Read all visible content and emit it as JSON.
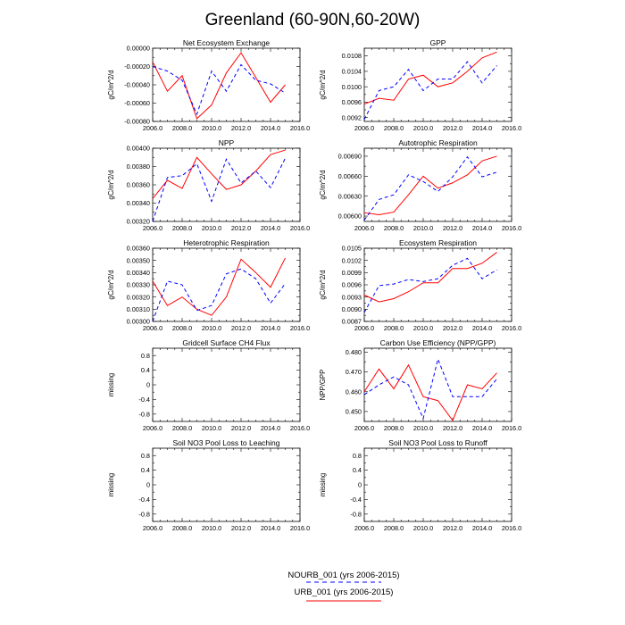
{
  "title": "Greenland (60-90N,60-20W)",
  "colors": {
    "URB_001": "#ff0000",
    "NOURB_001": "#0000ff",
    "axis": "#000000"
  },
  "legend": [
    {
      "label": "NOURB_001 (yrs 2006-2015)",
      "color": "#0000ff",
      "style": "dashed"
    },
    {
      "label": "URB_001 (yrs 2006-2015)",
      "color": "#ff0000",
      "style": "solid"
    }
  ],
  "chart_data": [
    {
      "type": "line",
      "title": "Net Ecosystem Exchange",
      "ylabel": "gC/m^2/d",
      "xlim": [
        2006,
        2016
      ],
      "ylim": [
        -0.0008,
        0
      ],
      "x_ticks": [
        2006,
        2008,
        2010,
        2012,
        2014,
        2016
      ],
      "x_tick_labels": [
        "2006.0",
        "2008.0",
        "2010.0",
        "2012.0",
        "2014.0",
        "2016.0"
      ],
      "y_ticks": [
        -0.0008,
        -0.0006,
        -0.0004,
        -0.0002,
        0
      ],
      "y_tick_labels": [
        "-0.00080",
        "-0.00060",
        "-0.00040",
        "-0.00020",
        "0.00000"
      ],
      "x": [
        2006,
        2007,
        2008,
        2009,
        2010,
        2011,
        2012,
        2013,
        2014,
        2015
      ],
      "series": [
        {
          "name": "URB_001",
          "color": "#ff0000",
          "style": "solid",
          "values": [
            -0.00015,
            -0.00047,
            -0.0003,
            -0.00077,
            -0.00062,
            -0.00027,
            -5e-05,
            -0.00032,
            -0.00059,
            -0.0004
          ]
        },
        {
          "name": "NOURB_001",
          "color": "#0000ff",
          "style": "dashed",
          "values": [
            -0.0002,
            -0.00025,
            -0.00035,
            -0.00072,
            -0.00025,
            -0.00047,
            -0.00018,
            -0.00035,
            -0.00039,
            -0.00049
          ]
        }
      ]
    },
    {
      "type": "line",
      "title": "GPP",
      "ylabel": "gC/m^2/d",
      "xlim": [
        2006,
        2016
      ],
      "ylim": [
        0.0091,
        0.011
      ],
      "x_ticks": [
        2006,
        2008,
        2010,
        2012,
        2014,
        2016
      ],
      "x_tick_labels": [
        "2006.0",
        "2008.0",
        "2010.0",
        "2012.0",
        "2014.0",
        "2016.0"
      ],
      "y_ticks": [
        0.0092,
        0.0096,
        0.01,
        0.0104,
        0.0108
      ],
      "y_tick_labels": [
        "0.0092",
        "0.0096",
        "0.0100",
        "0.0104",
        "0.0108"
      ],
      "x": [
        2006,
        2007,
        2008,
        2009,
        2010,
        2011,
        2012,
        2013,
        2014,
        2015
      ],
      "series": [
        {
          "name": "URB_001",
          "color": "#ff0000",
          "style": "solid",
          "values": [
            0.00955,
            0.0097,
            0.00965,
            0.0102,
            0.0103,
            0.01,
            0.0101,
            0.0104,
            0.01075,
            0.0109
          ]
        },
        {
          "name": "NOURB_001",
          "color": "#0000ff",
          "style": "dashed",
          "values": [
            0.00915,
            0.0099,
            0.01,
            0.01045,
            0.0099,
            0.0102,
            0.0102,
            0.01065,
            0.0101,
            0.01055
          ]
        }
      ]
    },
    {
      "type": "line",
      "title": "NPP",
      "ylabel": "gC/m^2/d",
      "xlim": [
        2006,
        2016
      ],
      "ylim": [
        0.0032,
        0.004
      ],
      "x_ticks": [
        2006,
        2008,
        2010,
        2012,
        2014,
        2016
      ],
      "x_tick_labels": [
        "2006.0",
        "2008.0",
        "2010.0",
        "2012.0",
        "2014.0",
        "2016.0"
      ],
      "y_ticks": [
        0.0032,
        0.0034,
        0.0036,
        0.0038,
        0.004
      ],
      "y_tick_labels": [
        "0.00320",
        "0.00340",
        "0.00360",
        "0.00380",
        "0.00400"
      ],
      "x": [
        2006,
        2007,
        2008,
        2009,
        2010,
        2011,
        2012,
        2013,
        2014,
        2015
      ],
      "series": [
        {
          "name": "URB_001",
          "color": "#ff0000",
          "style": "solid",
          "values": [
            0.00345,
            0.00365,
            0.00356,
            0.0039,
            0.00372,
            0.00355,
            0.0036,
            0.00375,
            0.00393,
            0.00398
          ]
        },
        {
          "name": "NOURB_001",
          "color": "#0000ff",
          "style": "dashed",
          "values": [
            0.0032,
            0.00368,
            0.0037,
            0.00383,
            0.00342,
            0.00388,
            0.00362,
            0.00375,
            0.00357,
            0.00389
          ]
        }
      ]
    },
    {
      "type": "line",
      "title": "Autotrophic Respiration",
      "ylabel": "gC/m^2/d",
      "xlim": [
        2006,
        2016
      ],
      "ylim": [
        0.00592,
        0.00702
      ],
      "x_ticks": [
        2006,
        2008,
        2010,
        2012,
        2014,
        2016
      ],
      "x_tick_labels": [
        "2006.0",
        "2008.0",
        "2010.0",
        "2012.0",
        "2014.0",
        "2016.0"
      ],
      "y_ticks": [
        0.006,
        0.0063,
        0.0066,
        0.0069
      ],
      "y_tick_labels": [
        "0.00600",
        "0.00630",
        "0.00660",
        "0.00690"
      ],
      "x": [
        2006,
        2007,
        2008,
        2009,
        2010,
        2011,
        2012,
        2013,
        2014,
        2015
      ],
      "series": [
        {
          "name": "URB_001",
          "color": "#ff0000",
          "style": "solid",
          "values": [
            0.00605,
            0.00602,
            0.00606,
            0.00632,
            0.0066,
            0.00642,
            0.0065,
            0.00662,
            0.00683,
            0.0069
          ]
        },
        {
          "name": "NOURB_001",
          "color": "#0000ff",
          "style": "dashed",
          "values": [
            0.00594,
            0.00625,
            0.00632,
            0.00662,
            0.00652,
            0.00637,
            0.00659,
            0.00689,
            0.00659,
            0.00666
          ]
        }
      ]
    },
    {
      "type": "line",
      "title": "Heterotrophic Respiration",
      "ylabel": "gC/m^2/d",
      "xlim": [
        2006,
        2016
      ],
      "ylim": [
        0.003,
        0.0036
      ],
      "x_ticks": [
        2006,
        2008,
        2010,
        2012,
        2014,
        2016
      ],
      "x_tick_labels": [
        "2006.0",
        "2008.0",
        "2010.0",
        "2012.0",
        "2014.0",
        "2016.0"
      ],
      "y_ticks": [
        0.003,
        0.0031,
        0.0032,
        0.0033,
        0.0034,
        0.0035,
        0.0036
      ],
      "y_tick_labels": [
        "0.00300",
        "0.00310",
        "0.00320",
        "0.00330",
        "0.00340",
        "0.00350",
        "0.00360"
      ],
      "x": [
        2006,
        2007,
        2008,
        2009,
        2010,
        2011,
        2012,
        2013,
        2014,
        2015
      ],
      "series": [
        {
          "name": "URB_001",
          "color": "#ff0000",
          "style": "solid",
          "values": [
            0.00333,
            0.00313,
            0.0032,
            0.0031,
            0.00305,
            0.0032,
            0.00351,
            0.0034,
            0.00328,
            0.00352
          ]
        },
        {
          "name": "NOURB_001",
          "color": "#0000ff",
          "style": "dashed",
          "values": [
            0.003,
            0.00333,
            0.0033,
            0.00309,
            0.00313,
            0.00339,
            0.00343,
            0.00335,
            0.00315,
            0.00331
          ]
        }
      ]
    },
    {
      "type": "line",
      "title": "Ecosystem Respiration",
      "ylabel": "gC/m^2/d",
      "xlim": [
        2006,
        2016
      ],
      "ylim": [
        0.0087,
        0.0105
      ],
      "x_ticks": [
        2006,
        2008,
        2010,
        2012,
        2014,
        2016
      ],
      "x_tick_labels": [
        "2006.0",
        "2008.0",
        "2010.0",
        "2012.0",
        "2014.0",
        "2016.0"
      ],
      "y_ticks": [
        0.0087,
        0.009,
        0.0093,
        0.0096,
        0.0099,
        0.0102,
        0.0105
      ],
      "y_tick_labels": [
        "0.0087",
        "0.0090",
        "0.0093",
        "0.0096",
        "0.0099",
        "0.0102",
        "0.0105"
      ],
      "x": [
        2006,
        2007,
        2008,
        2009,
        2010,
        2011,
        2012,
        2013,
        2014,
        2015
      ],
      "series": [
        {
          "name": "URB_001",
          "color": "#ff0000",
          "style": "solid",
          "values": [
            0.00935,
            0.00918,
            0.00926,
            0.00943,
            0.00965,
            0.00965,
            0.01,
            0.01,
            0.01013,
            0.0104
          ]
        },
        {
          "name": "NOURB_001",
          "color": "#0000ff",
          "style": "dashed",
          "values": [
            0.00892,
            0.00958,
            0.00962,
            0.00973,
            0.00968,
            0.00975,
            0.01008,
            0.01025,
            0.00975,
            0.00997
          ]
        }
      ]
    },
    {
      "type": "line",
      "title": "Gridcell Surface CH4 Flux",
      "ylabel": "missing",
      "xlim": [
        2006,
        2016
      ],
      "ylim": [
        -1,
        1
      ],
      "x_ticks": [
        2006,
        2008,
        2010,
        2012,
        2014,
        2016
      ],
      "x_tick_labels": [
        "2006.0",
        "2008.0",
        "2010.0",
        "2012.0",
        "2014.0",
        "2016.0"
      ],
      "y_ticks": [
        -0.8,
        -0.4,
        0,
        0.4,
        0.8
      ],
      "y_tick_labels": [
        "-0.8",
        "-0.4",
        "0",
        "0.4",
        "0.8"
      ],
      "x": [],
      "series": []
    },
    {
      "type": "line",
      "title": "Carbon Use Efficiency (NPP/GPP)",
      "ylabel": "NPP/GPP",
      "xlim": [
        2006,
        2016
      ],
      "ylim": [
        0.445,
        0.482
      ],
      "x_ticks": [
        2006,
        2008,
        2010,
        2012,
        2014,
        2016
      ],
      "x_tick_labels": [
        "2006.0",
        "2008.0",
        "2010.0",
        "2012.0",
        "2014.0",
        "2016.0"
      ],
      "y_ticks": [
        0.45,
        0.46,
        0.47,
        0.48
      ],
      "y_tick_labels": [
        "0.450",
        "0.460",
        "0.470",
        "0.480"
      ],
      "x": [
        2006,
        2007,
        2008,
        2009,
        2010,
        2011,
        2012,
        2013,
        2014,
        2015
      ],
      "series": [
        {
          "name": "URB_001",
          "color": "#ff0000",
          "style": "solid",
          "values": [
            0.46,
            0.4715,
            0.4615,
            0.4735,
            0.4575,
            0.4555,
            0.4455,
            0.4635,
            0.4615,
            0.4695
          ]
        },
        {
          "name": "NOURB_001",
          "color": "#0000ff",
          "style": "dashed",
          "values": [
            0.4585,
            0.4635,
            0.4675,
            0.4635,
            0.4465,
            0.4765,
            0.4575,
            0.4575,
            0.4575,
            0.4665
          ]
        }
      ]
    },
    {
      "type": "line",
      "title": "Soil NO3 Pool Loss to Leaching",
      "ylabel": "missing",
      "xlim": [
        2006,
        2016
      ],
      "ylim": [
        -1,
        1
      ],
      "x_ticks": [
        2006,
        2008,
        2010,
        2012,
        2014,
        2016
      ],
      "x_tick_labels": [
        "2006.0",
        "2008.0",
        "2010.0",
        "2012.0",
        "2014.0",
        "2016.0"
      ],
      "y_ticks": [
        -0.8,
        -0.4,
        0,
        0.4,
        0.8
      ],
      "y_tick_labels": [
        "-0.8",
        "-0.4",
        "0",
        "0.4",
        "0.8"
      ],
      "x": [],
      "series": []
    },
    {
      "type": "line",
      "title": "Soil NO3 Pool Loss to Runoff",
      "ylabel": "missing",
      "xlim": [
        2006,
        2016
      ],
      "ylim": [
        -1,
        1
      ],
      "x_ticks": [
        2006,
        2008,
        2010,
        2012,
        2014,
        2016
      ],
      "x_tick_labels": [
        "2006.0",
        "2008.0",
        "2010.0",
        "2012.0",
        "2014.0",
        "2016.0"
      ],
      "y_ticks": [
        -0.8,
        -0.4,
        0,
        0.4,
        0.8
      ],
      "y_tick_labels": [
        "-0.8",
        "-0.4",
        "0",
        "0.4",
        "0.8"
      ],
      "x": [],
      "series": []
    }
  ]
}
